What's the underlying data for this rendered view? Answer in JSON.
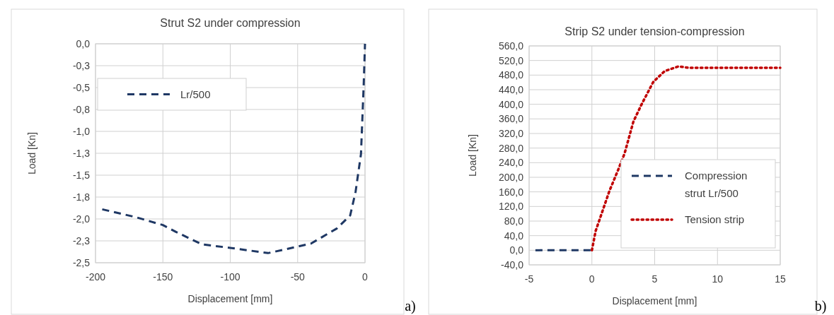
{
  "chart_data": [
    {
      "type": "line",
      "title": "Strut  S2 under compression",
      "xlabel": "Displacement [mm]",
      "ylabel": "Load [Kn]",
      "xlim": [
        -200,
        0
      ],
      "xticks": [
        -200,
        -150,
        -100,
        -50,
        0
      ],
      "ylim": [
        -2.5,
        0
      ],
      "yticks": [
        {
          "value": 0,
          "label": "0,0"
        },
        {
          "value": -0.25,
          "label": "-0,3"
        },
        {
          "value": -0.5,
          "label": "-0,5"
        },
        {
          "value": -0.75,
          "label": "-0,8"
        },
        {
          "value": -1,
          "label": "-1,0"
        },
        {
          "value": -1.25,
          "label": "-1,3"
        },
        {
          "value": -1.5,
          "label": "-1,5"
        },
        {
          "value": -1.75,
          "label": "-1,8"
        },
        {
          "value": -2,
          "label": "-2,0"
        },
        {
          "value": -2.25,
          "label": "-2,3"
        },
        {
          "value": -2.5,
          "label": "-2,5"
        }
      ],
      "grid": true,
      "legend": "top left",
      "annotations": [
        "a)"
      ],
      "series": [
        {
          "name": "Lr/500",
          "color": "#1f3864",
          "line_style": "dashed",
          "x": [
            -195,
            -170,
            -150,
            -140,
            -121,
            -100,
            -72,
            -60,
            -40,
            -21,
            -11,
            -7,
            -3,
            -1,
            0
          ],
          "values": [
            -1.89,
            -1.98,
            -2.07,
            -2.15,
            -2.29,
            -2.33,
            -2.39,
            -2.35,
            -2.28,
            -2.11,
            -1.96,
            -1.69,
            -1.26,
            -0.48,
            0
          ]
        }
      ]
    },
    {
      "type": "line",
      "title": "Strip S2 under tension-compression",
      "xlabel": "Displacement [mm]",
      "ylabel": "Load [Kn]",
      "xlim": [
        -5,
        15
      ],
      "xticks": [
        -5,
        0,
        5,
        10,
        15
      ],
      "ylim": [
        -40,
        560
      ],
      "yticks": [
        {
          "value": 560,
          "label": "560,0"
        },
        {
          "value": 520,
          "label": "520,0"
        },
        {
          "value": 480,
          "label": "480,0"
        },
        {
          "value": 440,
          "label": "440,0"
        },
        {
          "value": 400,
          "label": "400,0"
        },
        {
          "value": 360,
          "label": "360,0"
        },
        {
          "value": 320,
          "label": "320,0"
        },
        {
          "value": 280,
          "label": "280,0"
        },
        {
          "value": 240,
          "label": "240,0"
        },
        {
          "value": 200,
          "label": "200,0"
        },
        {
          "value": 160,
          "label": "160,0"
        },
        {
          "value": 120,
          "label": "120,0"
        },
        {
          "value": 80,
          "label": "80,0"
        },
        {
          "value": 40,
          "label": "40,0"
        },
        {
          "value": 0,
          "label": "0,0"
        },
        {
          "value": -40,
          "label": "-40,0"
        }
      ],
      "grid": true,
      "legend": "bottom right",
      "annotations": [
        "b)"
      ],
      "series": [
        {
          "name": "Compression strut Lr/500",
          "color": "#1f3864",
          "line_style": "dashed",
          "x": [
            -4.5,
            0
          ],
          "values": [
            0,
            0
          ]
        },
        {
          "name": "Tension strip",
          "color": "#c00000",
          "line_style": "dotted",
          "x": [
            0,
            0.3,
            1.4,
            2.1,
            2.6,
            3.3,
            3.9,
            4.9,
            5.8,
            6.9,
            7.7,
            15
          ],
          "values": [
            0,
            53,
            163,
            221,
            265,
            352,
            396,
            462,
            491,
            504,
            500,
            500
          ]
        }
      ]
    }
  ]
}
